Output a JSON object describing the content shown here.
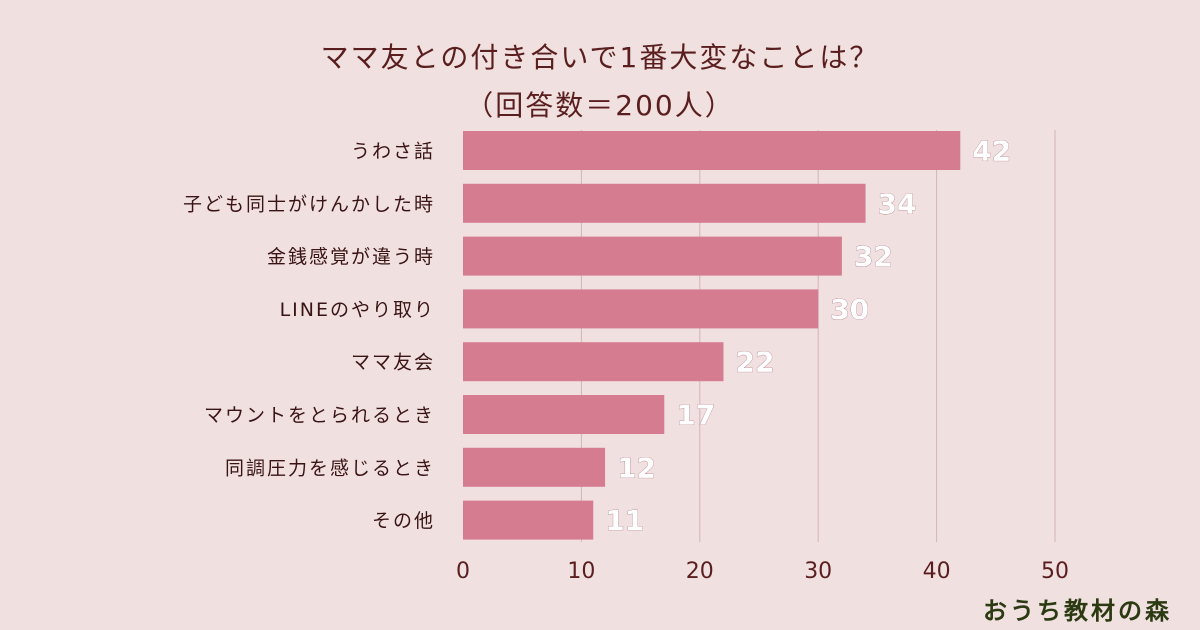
{
  "chart_data": {
    "type": "bar",
    "orientation": "horizontal",
    "title": "ママ友との付き合いで1番大変なことは？",
    "subtitle": "（回答数＝200人）",
    "categories": [
      "うわさ話",
      "子ども同士がけんかした時",
      "金銭感覚が違う時",
      "LINEのやり取り",
      "ママ友会",
      "マウントをとられるとき",
      "同調圧力を感じるとき",
      "その他"
    ],
    "values": [
      42,
      34,
      32,
      30,
      22,
      17,
      12,
      11
    ],
    "xlim": [
      0,
      50
    ],
    "xticks": [
      0,
      10,
      20,
      30,
      40,
      50
    ],
    "grid": true,
    "bar_color": "#d57c90",
    "background_color": "#f0e0e0"
  },
  "brand": {
    "logo_text": "おうち教材の森"
  }
}
